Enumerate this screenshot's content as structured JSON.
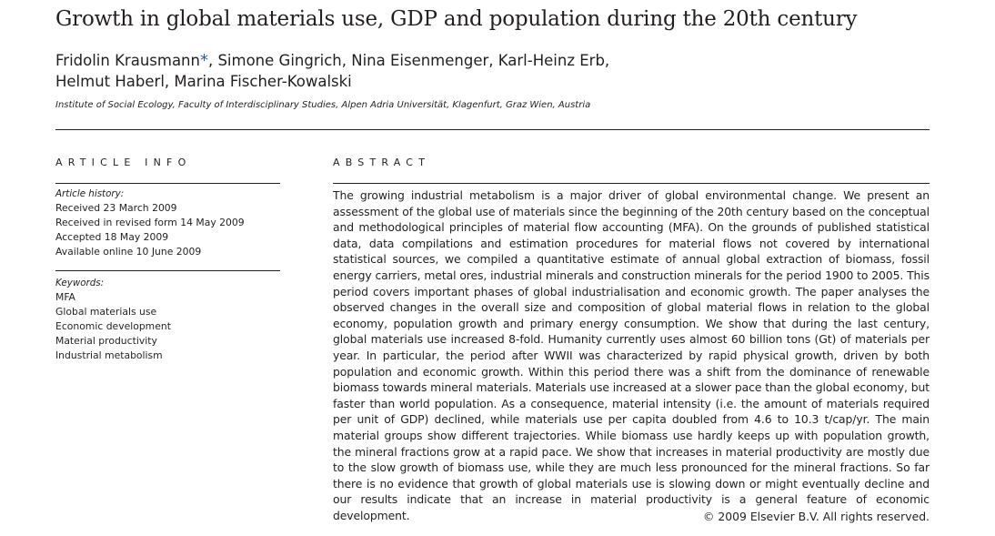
{
  "title": "Growth in global materials use, GDP and population during the 20th century",
  "authors": {
    "line1": "Fridolin Krausmann",
    "corresponding_mark": "*",
    "line1_rest": ", Simone Gingrich, Nina Eisenmenger, Karl-Heinz Erb,",
    "line2": "Helmut Haberl, Marina Fischer-Kowalski"
  },
  "affiliation": "Institute of Social Ecology, Faculty of Interdisciplinary Studies, Alpen Adria Universität, Klagenfurt, Graz Wien, Austria",
  "article_info": {
    "heading": "ARTICLE INFO",
    "history_label": "Article history:",
    "history": [
      "Received 23 March 2009",
      "Received in revised form 14 May 2009",
      "Accepted 18 May 2009",
      "Available online 10 June 2009"
    ],
    "keywords_label": "Keywords:",
    "keywords": [
      "MFA",
      "Global materials use",
      "Economic development",
      "Material productivity",
      "Industrial metabolism"
    ]
  },
  "abstract": {
    "heading": "ABSTRACT",
    "text": "The growing industrial metabolism is a major driver of global environmental change. We present an assessment of the global use of materials since the beginning of the 20th century based on the conceptual and methodological principles of material flow accounting (MFA). On the grounds of published statistical data, data compilations and estimation procedures for material flows not covered by international statistical sources, we compiled a quantitative estimate of annual global extraction of biomass, fossil energy carriers, metal ores, industrial minerals and construction minerals for the period 1900 to 2005. This period covers important phases of global industrialisation and economic growth. The paper analyses the observed changes in the overall size and composition of global material flows in relation to the global economy, population growth and primary energy consumption. We show that during the last century, global materials use increased 8-fold. Humanity currently uses almost 60 billion tons (Gt) of materials per year. In particular, the period after WWII was characterized by rapid physical growth, driven by both population and economic growth. Within this period there was a shift from the dominance of renewable biomass towards mineral materials. Materials use increased at a slower pace than the global economy, but faster than world population. As a consequence, material intensity (i.e. the amount of materials required per unit of GDP) declined, while materials use per capita doubled from 4.6 to 10.3 t/cap/yr. The main material groups show different trajectories. While biomass use hardly keeps up with population growth, the mineral fractions grow at a rapid pace. We show that increases in material productivity are mostly due to the slow growth of biomass use, while they are much less pronounced for the mineral fractions. So far there is no evidence that growth of global materials use is slowing down or might eventually decline and our results indicate that an increase in material productivity is a general feature of economic development.",
    "copyright": "© 2009 Elsevier B.V. All rights reserved."
  }
}
